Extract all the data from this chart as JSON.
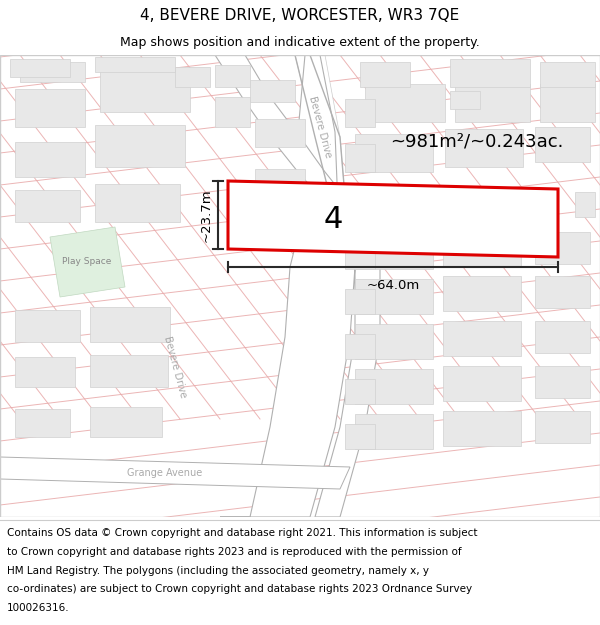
{
  "title": "4, BEVERE DRIVE, WORCESTER, WR3 7QE",
  "subtitle": "Map shows position and indicative extent of the property.",
  "footer_line1": "Contains OS data © Crown copyright and database right 2021. This information is subject",
  "footer_line2": "to Crown copyright and database rights 2023 and is reproduced with the permission of",
  "footer_line3": "HM Land Registry. The polygons (including the associated geometry, namely x, y",
  "footer_line4": "co-ordinates) are subject to Crown copyright and database rights 2023 Ordnance Survey",
  "footer_line5": "100026316.",
  "area_label": "~981m²/~0.243ac.",
  "width_label": "~64.0m",
  "height_label": "~23.7m",
  "plot_number": "4",
  "map_bg": "#ffffff",
  "road_fill": "#f2d0d0",
  "road_line": "#e8a8a8",
  "building_fill": "#e8e8e8",
  "building_edge": "#d0d0d0",
  "highlight_color": "#dd0000",
  "dim_color": "#2a2a2a",
  "play_fill": "#dff0df",
  "play_text": "#888888",
  "road_text": "#aaaaaa",
  "title_fontsize": 11,
  "subtitle_fontsize": 9,
  "footer_fontsize": 7.5
}
